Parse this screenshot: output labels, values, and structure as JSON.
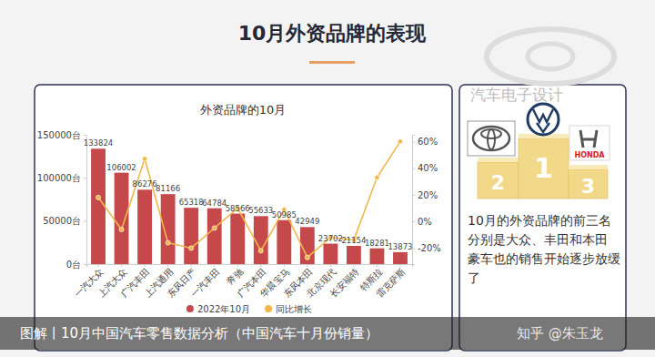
{
  "page": {
    "title": "10月外资品牌的表现",
    "watermark": "汽车电子设计",
    "podium": {
      "places": [
        "2",
        "1",
        "3"
      ],
      "brand_label": "HONDA"
    },
    "note": [
      "10月的外资品牌的前三名分别是大众、丰田和本田",
      "豪车也的销售开始逐步放缓了"
    ],
    "caption": "图解丨10月中国汽车零售数据分析（中国汽车十月份销量）",
    "credit": "知乎 @朱玉龙"
  },
  "chart_data": {
    "type": "bar",
    "title": "外资品牌的10月",
    "categories": [
      "一汽大众",
      "上汽大众",
      "广汽丰田",
      "上汽通用",
      "东风日产",
      "一汽丰田",
      "奔驰",
      "广汽本田",
      "华晨宝马",
      "东风本田",
      "北京现代",
      "长安福特",
      "特斯拉",
      "雷克萨斯"
    ],
    "series": [
      {
        "name": "2022年10月",
        "type": "bar",
        "color": "#c5484b",
        "data_labels": true,
        "values": [
          133824,
          106002,
          86276,
          81166,
          65318,
          64784,
          58566,
          55633,
          50985,
          42949,
          23702,
          21154,
          18281,
          13873
        ]
      },
      {
        "name": "同比增长",
        "type": "line",
        "axis": "y2",
        "color": "#f2b64c",
        "marker": "circle",
        "values": [
          18,
          -6,
          47,
          -16,
          -20,
          -5,
          10,
          -22,
          9,
          -27,
          -12,
          -14,
          33,
          60
        ]
      }
    ],
    "ylim": [
      0,
      150000
    ],
    "yticks": [
      {
        "value": 0,
        "label": "0台"
      },
      {
        "value": 50000,
        "label": "50000台"
      },
      {
        "value": 100000,
        "label": "100000台"
      },
      {
        "value": 150000,
        "label": "150000台"
      }
    ],
    "y2lim": [
      -32,
      65
    ],
    "y2ticks": [
      {
        "value": -20,
        "label": "-20%"
      },
      {
        "value": 0,
        "label": "0%"
      },
      {
        "value": 20,
        "label": "20%"
      },
      {
        "value": 40,
        "label": "40%"
      },
      {
        "value": 60,
        "label": "60%"
      }
    ],
    "grid": false,
    "legend": "bottom"
  }
}
